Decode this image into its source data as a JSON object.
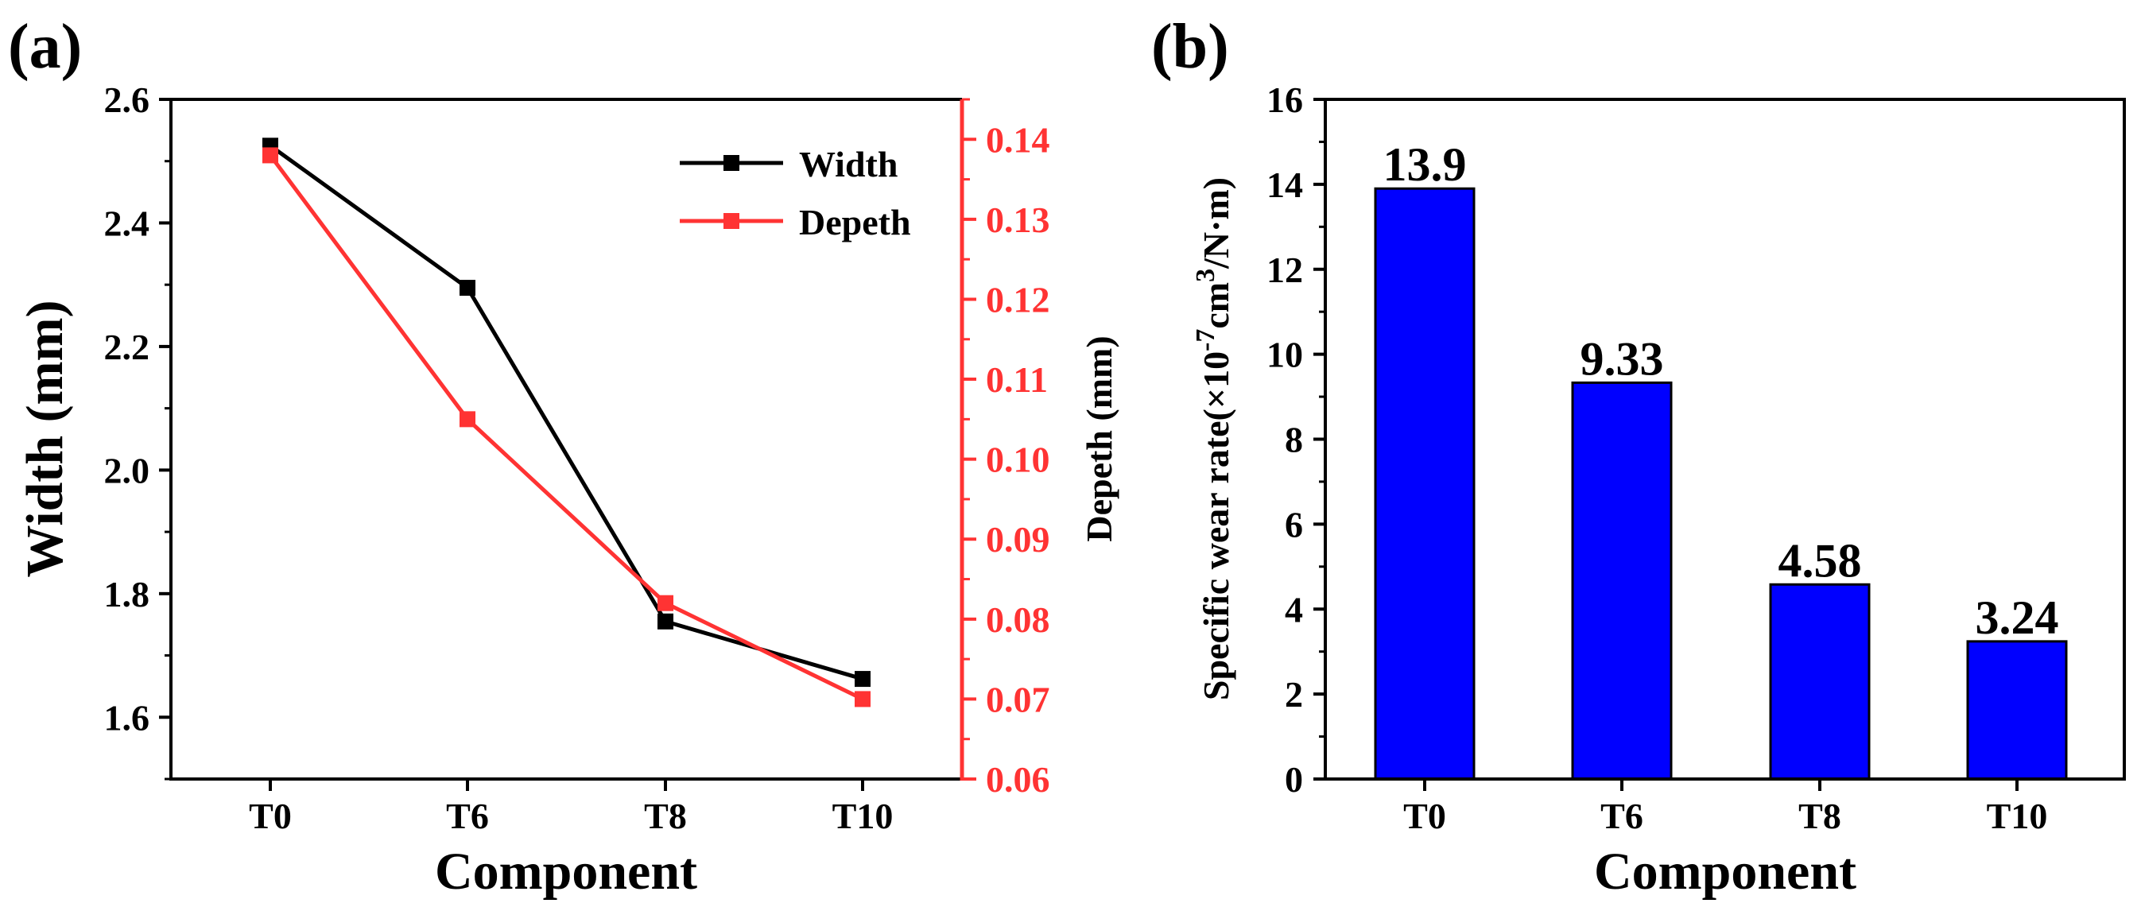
{
  "chart_data": [
    {
      "panel_label": "(a)",
      "type": "line",
      "categories": [
        "T0",
        "T6",
        "T8",
        "T10"
      ],
      "xlabel": "Component",
      "ylabel": "Width (mm)",
      "ylabel_right": "Depeth (mm)",
      "ylim": [
        1.5,
        2.6
      ],
      "yticks": [
        "1.6",
        "1.8",
        "2.0",
        "2.2",
        "2.4",
        "2.6"
      ],
      "ylim_right": [
        0.06,
        0.145
      ],
      "yticks_right": [
        "0.06",
        "0.07",
        "0.08",
        "0.09",
        "0.10",
        "0.11",
        "0.12",
        "0.13",
        "0.14"
      ],
      "legend_position": "top-right",
      "series": [
        {
          "name": "Width",
          "axis": "left",
          "color": "#000000",
          "values": [
            2.525,
            2.295,
            1.755,
            1.662
          ]
        },
        {
          "name": "Depeth",
          "axis": "right",
          "color": "#ff3333",
          "values": [
            0.138,
            0.105,
            0.082,
            0.07
          ]
        }
      ]
    },
    {
      "panel_label": "(b)",
      "type": "bar",
      "categories": [
        "T0",
        "T6",
        "T8",
        "T10"
      ],
      "values": [
        13.9,
        9.33,
        4.58,
        3.24
      ],
      "data_labels": [
        "13.9",
        "9.33",
        "4.58",
        "3.24"
      ],
      "xlabel": "Component",
      "ylabel": "Specific wear rate(×10",
      "ylabel_exp1": "-7",
      "ylabel_mid": "cm",
      "ylabel_exp2": "3",
      "ylabel_end": "/N·m)",
      "ylim": [
        0,
        16
      ],
      "yticks": [
        "0",
        "2",
        "4",
        "6",
        "8",
        "10",
        "12",
        "14",
        "16"
      ],
      "bar_color": "#0000ff"
    }
  ]
}
